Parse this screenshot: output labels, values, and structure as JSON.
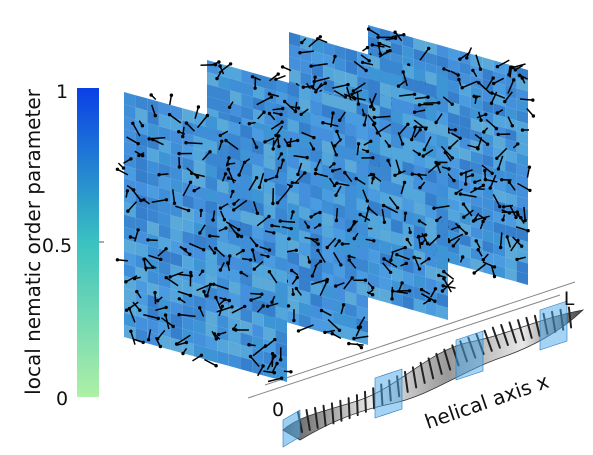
{
  "colorbar": {
    "label": "local nematic order parameter",
    "ticks": [
      "0",
      "0.5",
      "1"
    ],
    "color_low": "#aef0a6",
    "color_mid": "#3ac2c0",
    "color_high": "#0a3fe6"
  },
  "axis": {
    "label": "helical axis x",
    "start_label": "0",
    "end_label": "L"
  },
  "planes": {
    "count": 4,
    "base_color": "#3f8fd8"
  },
  "arrow_color": "#000000",
  "icons": {
    "helix": "twisted-ribbon-helix-icon",
    "cut_plane": "translucent-square-cut-icon"
  }
}
